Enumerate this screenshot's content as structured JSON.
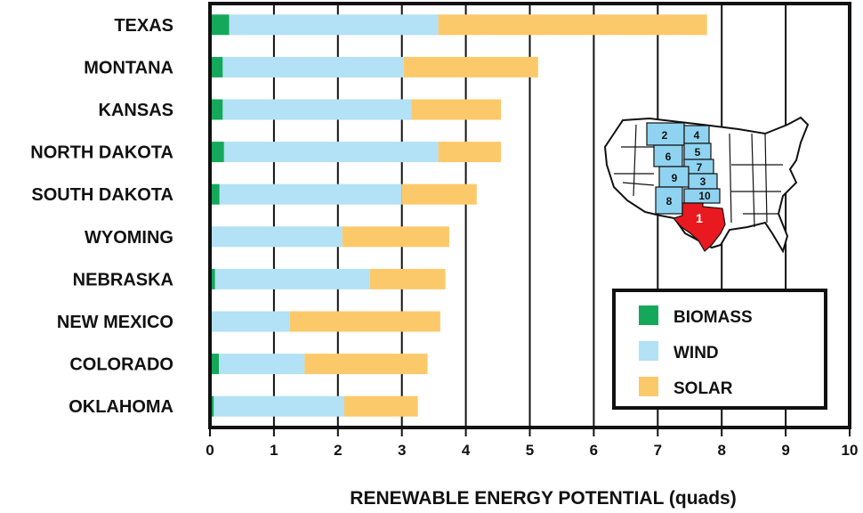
{
  "chart_data": {
    "type": "bar",
    "orientation": "horizontal",
    "stacked": true,
    "categories": [
      "TEXAS",
      "MONTANA",
      "KANSAS",
      "NORTH DAKOTA",
      "SOUTH DAKOTA",
      "WYOMING",
      "NEBRASKA",
      "NEW MEXICO",
      "COLORADO",
      "OKLAHOMA"
    ],
    "series": [
      {
        "name": "BIOMASS",
        "color": "#14a85a",
        "values": [
          0.3,
          0.2,
          0.2,
          0.22,
          0.15,
          0.0,
          0.08,
          0.0,
          0.14,
          0.06
        ]
      },
      {
        "name": "WIND",
        "color": "#b3e1f5",
        "values": [
          3.27,
          2.83,
          2.95,
          3.35,
          2.85,
          2.07,
          2.42,
          1.25,
          1.34,
          2.04
        ]
      },
      {
        "name": "SOLAR",
        "color": "#fcc96a",
        "values": [
          4.2,
          2.1,
          1.4,
          0.98,
          1.17,
          1.67,
          1.18,
          2.35,
          1.92,
          1.15
        ]
      }
    ],
    "xlabel": "RENEWABLE ENERGY POTENTIAL (quads)",
    "xlim": [
      0,
      10
    ],
    "xticks": [
      0,
      1,
      2,
      3,
      4,
      5,
      6,
      7,
      8,
      9,
      10
    ],
    "grid": "vertical",
    "legend_position": "lower-right",
    "inset_map": {
      "description_colors": {
        "top_state": "#e8191f",
        "others": "#8fd3f0"
      },
      "rank_labels": [
        "1",
        "2",
        "3",
        "4",
        "5",
        "6",
        "7",
        "8",
        "9",
        "10"
      ]
    }
  }
}
